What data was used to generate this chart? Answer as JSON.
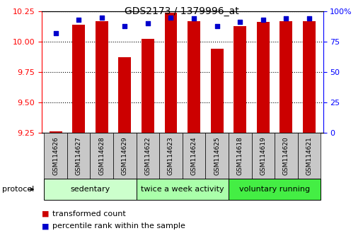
{
  "title": "GDS2173 / 1379996_at",
  "samples": [
    "GSM114626",
    "GSM114627",
    "GSM114628",
    "GSM114629",
    "GSM114622",
    "GSM114623",
    "GSM114624",
    "GSM114625",
    "GSM114618",
    "GSM114619",
    "GSM114620",
    "GSM114621"
  ],
  "red_values": [
    9.26,
    10.14,
    10.17,
    9.87,
    10.02,
    10.24,
    10.17,
    9.94,
    10.13,
    10.16,
    10.17,
    10.17
  ],
  "blue_values": [
    82,
    93,
    95,
    88,
    90,
    95,
    94,
    88,
    91,
    93,
    94,
    94
  ],
  "groups": [
    {
      "label": "sedentary",
      "start": 0,
      "end": 3,
      "color": "#ccffcc"
    },
    {
      "label": "twice a week activity",
      "start": 4,
      "end": 7,
      "color": "#aaffaa"
    },
    {
      "label": "voluntary running",
      "start": 8,
      "end": 11,
      "color": "#44ee44"
    }
  ],
  "ylim_left": [
    9.25,
    10.25
  ],
  "ylim_right": [
    0,
    100
  ],
  "yticks_left": [
    9.25,
    9.5,
    9.75,
    10.0,
    10.25
  ],
  "yticks_right": [
    0,
    25,
    50,
    75,
    100
  ],
  "ytick_labels_right": [
    "0",
    "25",
    "50",
    "75",
    "100%"
  ],
  "bar_color": "#cc0000",
  "marker_color": "#0000cc",
  "bar_width": 0.55,
  "baseline": 9.25,
  "legend_red": "transformed count",
  "legend_blue": "percentile rank within the sample",
  "protocol_label": "protocol"
}
